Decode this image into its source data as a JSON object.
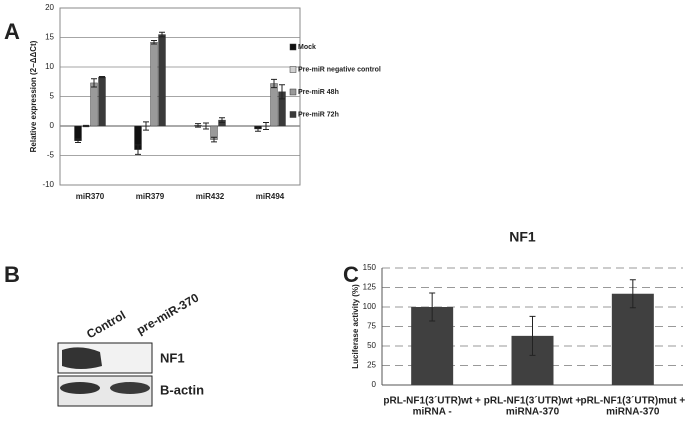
{
  "chart_data": [
    {
      "type": "bar",
      "panel": "A",
      "ylabel": "Relative expression (2−ΔΔCt)",
      "categories": [
        "miR370",
        "miR379",
        "miR432",
        "miR494"
      ],
      "series": [
        {
          "name": "Mock",
          "color": "#111111",
          "values": [
            -2.5,
            -4,
            0.1,
            -0.5
          ],
          "errors": [
            0.3,
            0.8,
            0.3,
            0.4
          ]
        },
        {
          "name": "Pre-miR negative control",
          "color": "#d0d0d0",
          "values": [
            0,
            0,
            0,
            0
          ],
          "errors": [
            0.1,
            0.7,
            0.5,
            0.6
          ]
        },
        {
          "name": "Pre-miR 48h",
          "color": "#9a9a9a",
          "values": [
            7.3,
            14.2,
            -2.3,
            7.2
          ],
          "errors": [
            0.7,
            0.3,
            0.4,
            0.7
          ]
        },
        {
          "name": "Pre-miR 72h",
          "color": "#3a3a3a",
          "values": [
            8.3,
            15.5,
            1,
            5.8
          ],
          "errors": [
            0.1,
            0.4,
            0.4,
            1.2
          ]
        }
      ],
      "ylim": [
        -10,
        20
      ],
      "yticks": [
        -10,
        -5,
        0,
        5,
        10,
        15,
        20
      ],
      "grid": true,
      "grid_dashed": false,
      "legend": "right"
    },
    {
      "type": "bar",
      "panel": "C",
      "title": "NF1",
      "ylabel": "Luciferase activity (%)",
      "categories": [
        [
          "pRL-NF1(3´UTR)wt +",
          "miRNA -"
        ],
        [
          "pRL-NF1(3´UTR)wt +",
          "miRNA-370"
        ],
        [
          "pRL-NF1(3´UTR)mut +",
          "miRNA-370"
        ]
      ],
      "values": [
        100,
        63,
        117
      ],
      "errors": [
        18,
        25,
        18
      ],
      "color": "#404040",
      "ylim": [
        0,
        150
      ],
      "yticks": [
        0,
        25,
        50,
        75,
        100,
        125,
        150
      ],
      "grid": true,
      "grid_dashed": true
    }
  ],
  "blot": {
    "panel": "B",
    "lanes": [
      "Control",
      "pre-miR-370"
    ],
    "bands": [
      "NF1",
      "B-actin"
    ]
  }
}
